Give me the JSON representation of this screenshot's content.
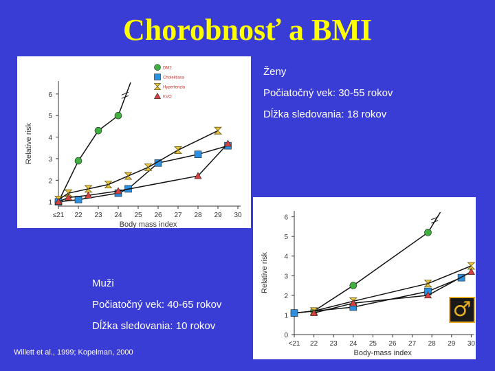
{
  "slide": {
    "title": "Chorobnosť a BMI",
    "women": {
      "sex": "Ženy",
      "age": "Počiatočný vek: 30-55 rokov",
      "followup": "Dĺžka sledovania: 18 rokov"
    },
    "men": {
      "sex": "Muži",
      "age": "Počiatočný vek: 40-65 rokov",
      "followup": "Dĺžka sledovania: 10 rokov"
    },
    "citation": "Willett et al., 1999; Kopelman, 2000",
    "male_symbol": "♂"
  },
  "chart_data": [
    {
      "type": "line",
      "xlabel": "Body mass index",
      "ylabel": "Relative risk",
      "x_ticks": [
        "≤21",
        "22",
        "23",
        "24",
        "25",
        "26",
        "27",
        "28",
        "29",
        "30"
      ],
      "y_ticks": [
        "1",
        "2",
        "3",
        "4",
        "5",
        "6"
      ],
      "ylim": [
        0.8,
        6.6
      ],
      "legend_position": "top-right",
      "legend_size": "small",
      "series": [
        {
          "name": "DM2",
          "marker": "circle",
          "color": "#3fb03f",
          "x": [
            21,
            22,
            23,
            24
          ],
          "y": [
            1.0,
            2.9,
            4.3,
            5.0
          ],
          "break": true
        },
        {
          "name": "Cholelitiasa",
          "marker": "square",
          "color": "#2d8fe0",
          "x": [
            21,
            22,
            24,
            24.5,
            26,
            28,
            29.5
          ],
          "y": [
            1.0,
            1.1,
            1.4,
            1.6,
            2.8,
            3.2,
            3.6
          ]
        },
        {
          "name": "Hypertenzia",
          "marker": "hourglass",
          "color": "#e8c440",
          "x": [
            21,
            21.5,
            22.5,
            23.5,
            24.5,
            25.5,
            27,
            29
          ],
          "y": [
            1.1,
            1.4,
            1.6,
            1.8,
            2.2,
            2.6,
            3.4,
            4.3
          ]
        },
        {
          "name": "KVO",
          "marker": "triangle",
          "color": "#d84040",
          "x": [
            21,
            21.5,
            22.5,
            24,
            28,
            29.5
          ],
          "y": [
            1.0,
            1.2,
            1.3,
            1.5,
            2.2,
            3.7
          ]
        }
      ]
    },
    {
      "type": "line",
      "xlabel": "Body-mass index",
      "ylabel": "Relative risk",
      "x_ticks": [
        "<21",
        "22",
        "23",
        "24",
        "25",
        "26",
        "27",
        "28",
        "29",
        "30"
      ],
      "y_ticks": [
        "0",
        "1",
        "2",
        "3",
        "4",
        "5",
        "6"
      ],
      "ylim": [
        0,
        6.3
      ],
      "series": [
        {
          "marker": "circle",
          "color": "#3fb03f",
          "x": [
            21,
            22,
            24,
            27.8
          ],
          "y": [
            1.1,
            1.2,
            2.5,
            5.2
          ],
          "break": true
        },
        {
          "marker": "square",
          "color": "#2d8fe0",
          "x": [
            21,
            24,
            27.8,
            29.5
          ],
          "y": [
            1.1,
            1.4,
            2.2,
            2.9
          ]
        },
        {
          "marker": "hourglass",
          "color": "#e8c440",
          "x": [
            22,
            24,
            27.8,
            30
          ],
          "y": [
            1.2,
            1.7,
            2.6,
            3.5
          ]
        },
        {
          "marker": "triangle",
          "color": "#d84040",
          "x": [
            22,
            24,
            27.8,
            30
          ],
          "y": [
            1.1,
            1.6,
            2.0,
            3.2
          ]
        }
      ]
    }
  ]
}
